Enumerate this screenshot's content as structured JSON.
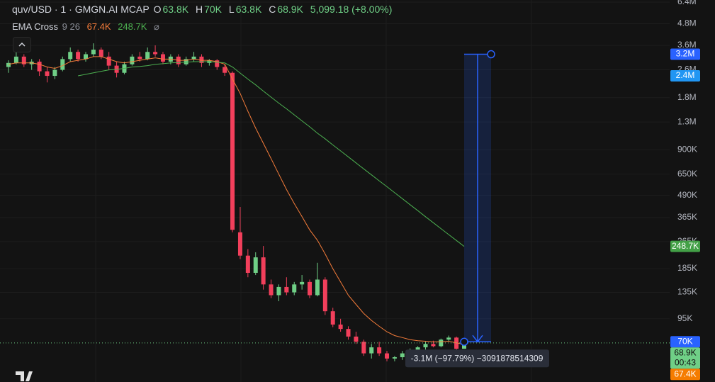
{
  "chart_data": {
    "type": "candlestick",
    "header": {
      "symbol": "quv/USD · 1 · GMGN.AI MCAP",
      "ohlc": [
        {
          "label": "O",
          "value": "63.8K"
        },
        {
          "label": "H",
          "value": "70K"
        },
        {
          "label": "L",
          "value": "63.8K"
        },
        {
          "label": "C",
          "value": "68.9K"
        }
      ],
      "change": "5,099.18 (+8.00%)"
    },
    "indicator": {
      "name": "EMA Cross",
      "params": "9 26",
      "values": [
        "67.4K",
        "248.7K"
      ]
    },
    "log_scale": true,
    "grid": true,
    "ylim": [
      41000,
      6580000
    ],
    "yticks": [
      {
        "value": 6400000,
        "label": "6.4M"
      },
      {
        "value": 4800000,
        "label": "4.8M"
      },
      {
        "value": 3600000,
        "label": "3.6M"
      },
      {
        "value": 2600000,
        "label": "2.6M"
      },
      {
        "value": 1800000,
        "label": "1.8M"
      },
      {
        "value": 1300000,
        "label": "1.3M"
      },
      {
        "value": 900000,
        "label": "900K"
      },
      {
        "value": 650000,
        "label": "650K"
      },
      {
        "value": 490000,
        "label": "490K"
      },
      {
        "value": 365000,
        "label": "365K"
      },
      {
        "value": 265000,
        "label": "265K"
      },
      {
        "value": 185000,
        "label": "185K"
      },
      {
        "value": 135000,
        "label": "135K"
      },
      {
        "value": 95000,
        "label": "95K"
      }
    ],
    "up_color": "#6fcf86",
    "down_color": "#f23f5b",
    "open": [
      2700000,
      2850000,
      3100000,
      2800000,
      2900000,
      2550000,
      2400000,
      2600000,
      3000000,
      3300000,
      3000000,
      3200000,
      3400000,
      3100000,
      2750000,
      2500000,
      2800000,
      3100000,
      3000000,
      3300000,
      3200000,
      2900000,
      3100000,
      2800000,
      3000000,
      3100000,
      2850000,
      2950000,
      2700000,
      2500000,
      300000,
      220000,
      175000,
      215000,
      150000,
      130000,
      145000,
      135000,
      150000,
      155000,
      130000,
      160000,
      105000,
      88000,
      83000,
      75000,
      70000,
      60000,
      65000,
      60000,
      56000,
      57000,
      60000,
      62000,
      65000,
      68000,
      66000,
      72000,
      74000,
      63800
    ],
    "high": [
      2950000,
      3400000,
      3200000,
      3000000,
      3000000,
      2700000,
      2700000,
      3100000,
      3500000,
      3400000,
      3300000,
      3700000,
      3500000,
      3300000,
      2900000,
      2900000,
      3200000,
      3300000,
      3500000,
      3600000,
      3300000,
      3200000,
      3200000,
      3100000,
      3300000,
      3200000,
      3000000,
      3000000,
      2800000,
      2550000,
      420000,
      240000,
      230000,
      250000,
      160000,
      150000,
      165000,
      155000,
      170000,
      160000,
      200000,
      165000,
      110000,
      95000,
      86000,
      80000,
      72000,
      68000,
      70000,
      62000,
      58000,
      62000,
      64000,
      66000,
      70000,
      71000,
      73000,
      76000,
      75000,
      70000
    ],
    "low": [
      2500000,
      2800000,
      2700000,
      2600000,
      2400000,
      2200000,
      2300000,
      2550000,
      2900000,
      2900000,
      2900000,
      3100000,
      3000000,
      2600000,
      2350000,
      2450000,
      2750000,
      2900000,
      2950000,
      3100000,
      2800000,
      2800000,
      2700000,
      2750000,
      2900000,
      2700000,
      2750000,
      2600000,
      2400000,
      300000,
      210000,
      165000,
      170000,
      140000,
      125000,
      120000,
      130000,
      130000,
      140000,
      125000,
      128000,
      100000,
      85000,
      80000,
      72000,
      68000,
      58000,
      56000,
      58000,
      54000,
      54000,
      55000,
      58000,
      60000,
      63000,
      65000,
      65000,
      70000,
      62000,
      63800
    ],
    "close": [
      2850000,
      3100000,
      2800000,
      2900000,
      2550000,
      2400000,
      2600000,
      3000000,
      3300000,
      3000000,
      3200000,
      3400000,
      3100000,
      2750000,
      2500000,
      2800000,
      3100000,
      3000000,
      3300000,
      3200000,
      2900000,
      3100000,
      2800000,
      3000000,
      3100000,
      2850000,
      2950000,
      2700000,
      2500000,
      310000,
      220000,
      175000,
      215000,
      150000,
      130000,
      145000,
      135000,
      150000,
      155000,
      130000,
      160000,
      105000,
      88000,
      83000,
      75000,
      70000,
      60000,
      65000,
      60000,
      56000,
      57000,
      60000,
      62000,
      65000,
      68000,
      66000,
      72000,
      74000,
      63800,
      68900
    ],
    "series": [
      {
        "name": "EMA 9",
        "color": "#f57c3a",
        "values": [
          2800000,
          2850000,
          2850000,
          2850000,
          2800000,
          2700000,
          2650000,
          2750000,
          2900000,
          2950000,
          3000000,
          3100000,
          3100000,
          3000000,
          2900000,
          2850000,
          2900000,
          2950000,
          3000000,
          3050000,
          3000000,
          3000000,
          2950000,
          2950000,
          3000000,
          2950000,
          2950000,
          2900000,
          2800000,
          2300000,
          1900000,
          1500000,
          1200000,
          980000,
          800000,
          650000,
          530000,
          440000,
          370000,
          310000,
          270000,
          225000,
          185000,
          155000,
          130000,
          115000,
          102000,
          93000,
          86000,
          80000,
          76000,
          74000,
          72000,
          71000,
          70500,
          70000,
          70000,
          70500,
          69000,
          67400
        ]
      },
      {
        "name": "EMA 26",
        "color": "#4caf50",
        "values": [
          null,
          null,
          null,
          null,
          null,
          null,
          null,
          null,
          null,
          2400000,
          2450000,
          2500000,
          2550000,
          2600000,
          2620000,
          2650000,
          2700000,
          2720000,
          2750000,
          2800000,
          2820000,
          2850000,
          2870000,
          2880000,
          2900000,
          2900000,
          2900000,
          2880000,
          2850000,
          2700000,
          2490000,
          2300000,
          2130000,
          1960000,
          1810000,
          1670000,
          1550000,
          1430000,
          1320000,
          1220000,
          1120000,
          1040000,
          958000,
          885000,
          818000,
          755000,
          697000,
          644000,
          595000,
          550000,
          508000,
          469000,
          433000,
          400000,
          369000,
          341000,
          315000,
          291000,
          269000,
          248700
        ]
      }
    ],
    "last_price": {
      "value": 68900,
      "label": "68.9K",
      "countdown": "00:43",
      "color": "#6fcf86"
    },
    "markers": [
      {
        "value": 3200000,
        "label": "3.2M",
        "color": "#2962ff"
      },
      {
        "value": 2400000,
        "label": "2.4M",
        "color": "#2196f3"
      },
      {
        "value": 248700,
        "label": "248.7K",
        "color": "#43a047"
      },
      {
        "value": 70000,
        "label": "70K",
        "color": "#2962ff"
      }
    ],
    "ema_marker": {
      "value": 67400,
      "label": "67.4K",
      "color": "#f57c00"
    },
    "measure": {
      "from": 3200000,
      "to": 70000,
      "label": "-3.1M (−97.79%) −3091878514309"
    }
  }
}
